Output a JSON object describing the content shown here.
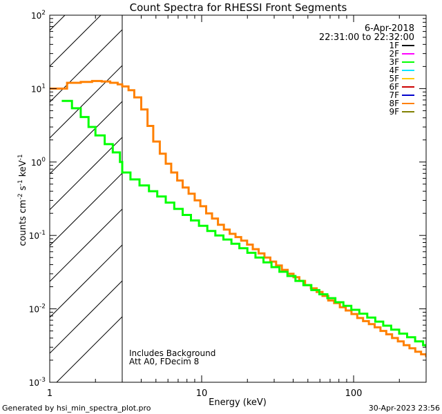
{
  "chart_data": {
    "type": "line",
    "title": "Count Spectra for RHESSI Front Segments",
    "xlabel": "Energy (keV)",
    "ylabel_parts": [
      "counts cm",
      "-2",
      " s",
      "-1",
      " keV",
      "-1"
    ],
    "xscale": "log",
    "yscale": "log",
    "xlim": [
      1,
      300
    ],
    "ylim": [
      0.001,
      100
    ],
    "x_ticks": [
      {
        "value": 1,
        "label": "1"
      },
      {
        "value": 10,
        "label": "10"
      },
      {
        "value": 100,
        "label": "100"
      }
    ],
    "y_ticks": [
      {
        "value": 100,
        "base": "10",
        "exp": "2"
      },
      {
        "value": 10,
        "base": "10",
        "exp": "1"
      },
      {
        "value": 1,
        "base": "10",
        "exp": "0"
      },
      {
        "value": 0.1,
        "base": "10",
        "exp": "-1"
      },
      {
        "value": 0.01,
        "base": "10",
        "exp": "-2"
      },
      {
        "value": 0.001,
        "base": "10",
        "exp": "-3"
      }
    ],
    "date": "6-Apr-2018",
    "time_range": "22:31:00 to 22:32:00",
    "hatched_region_max_keV": 3,
    "annotations": [
      "Includes Background",
      "Att A0, FDecim 8"
    ],
    "legend": [
      {
        "label": "1F",
        "color": "#000000"
      },
      {
        "label": "2F",
        "color": "#ff00ff"
      },
      {
        "label": "3F",
        "color": "#00ff00"
      },
      {
        "label": "4F",
        "color": "#00e5ff"
      },
      {
        "label": "5F",
        "color": "#ffcc00"
      },
      {
        "label": "6F",
        "color": "#cc0000"
      },
      {
        "label": "7F",
        "color": "#0000cc"
      },
      {
        "label": "8F",
        "color": "#ff8000"
      },
      {
        "label": "9F",
        "color": "#808000"
      }
    ],
    "series": [
      {
        "name": "8F",
        "color": "#ff8000",
        "points": [
          [
            1.0,
            10.0
          ],
          [
            1.3,
            12.0
          ],
          [
            1.6,
            12.3
          ],
          [
            1.9,
            12.7
          ],
          [
            2.2,
            12.5
          ],
          [
            2.5,
            12.0
          ],
          [
            2.8,
            11.4
          ],
          [
            3.0,
            10.7
          ],
          [
            3.3,
            9.5
          ],
          [
            3.6,
            7.6
          ],
          [
            4.0,
            5.2
          ],
          [
            4.4,
            3.1
          ],
          [
            4.8,
            1.9
          ],
          [
            5.3,
            1.3
          ],
          [
            5.8,
            0.95
          ],
          [
            6.3,
            0.72
          ],
          [
            6.9,
            0.56
          ],
          [
            7.5,
            0.45
          ],
          [
            8.2,
            0.37
          ],
          [
            9.0,
            0.3
          ],
          [
            9.8,
            0.25
          ],
          [
            10.7,
            0.2
          ],
          [
            11.7,
            0.17
          ],
          [
            12.8,
            0.14
          ],
          [
            14.0,
            0.12
          ],
          [
            15.3,
            0.105
          ],
          [
            16.7,
            0.095
          ],
          [
            18.2,
            0.085
          ],
          [
            19.9,
            0.075
          ],
          [
            21.7,
            0.065
          ],
          [
            23.7,
            0.057
          ],
          [
            25.9,
            0.05
          ],
          [
            28.3,
            0.044
          ],
          [
            30.9,
            0.039
          ],
          [
            33.7,
            0.034
          ],
          [
            36.8,
            0.03
          ],
          [
            40.2,
            0.027
          ],
          [
            43.9,
            0.024
          ],
          [
            47.9,
            0.021
          ],
          [
            52.3,
            0.019
          ],
          [
            57.1,
            0.017
          ],
          [
            62.4,
            0.015
          ],
          [
            68.1,
            0.013
          ],
          [
            74.4,
            0.012
          ],
          [
            81.2,
            0.0105
          ],
          [
            88.7,
            0.0095
          ],
          [
            96.8,
            0.0085
          ],
          [
            105.7,
            0.0075
          ],
          [
            115.4,
            0.0068
          ],
          [
            126.0,
            0.0062
          ],
          [
            137.6,
            0.0056
          ],
          [
            150.2,
            0.005
          ],
          [
            164.0,
            0.0045
          ],
          [
            179.1,
            0.004
          ],
          [
            195.5,
            0.0036
          ],
          [
            213.5,
            0.0032
          ],
          [
            233.1,
            0.0029
          ],
          [
            254.5,
            0.0026
          ],
          [
            277.9,
            0.0024
          ],
          [
            300.0,
            0.0022
          ]
        ]
      },
      {
        "name": "3F",
        "color": "#00ff00",
        "points": [
          [
            1.2,
            6.8
          ],
          [
            1.4,
            5.4
          ],
          [
            1.6,
            4.1
          ],
          [
            1.8,
            3.0
          ],
          [
            2.0,
            2.3
          ],
          [
            2.3,
            1.75
          ],
          [
            2.6,
            1.35
          ],
          [
            2.9,
            1.0
          ],
          [
            3.0,
            0.72
          ],
          [
            3.4,
            0.58
          ],
          [
            3.9,
            0.48
          ],
          [
            4.5,
            0.4
          ],
          [
            5.1,
            0.34
          ],
          [
            5.8,
            0.28
          ],
          [
            6.6,
            0.23
          ],
          [
            7.5,
            0.19
          ],
          [
            8.5,
            0.16
          ],
          [
            9.6,
            0.135
          ],
          [
            10.9,
            0.115
          ],
          [
            12.3,
            0.1
          ],
          [
            13.9,
            0.088
          ],
          [
            15.7,
            0.077
          ],
          [
            17.7,
            0.067
          ],
          [
            20.0,
            0.058
          ],
          [
            22.6,
            0.05
          ],
          [
            25.5,
            0.043
          ],
          [
            28.8,
            0.037
          ],
          [
            32.5,
            0.032
          ],
          [
            36.7,
            0.028
          ],
          [
            41.4,
            0.024
          ],
          [
            46.7,
            0.021
          ],
          [
            52.7,
            0.018
          ],
          [
            59.5,
            0.0158
          ],
          [
            67.2,
            0.014
          ],
          [
            75.8,
            0.0123
          ],
          [
            85.6,
            0.011
          ],
          [
            96.6,
            0.0097
          ],
          [
            109.0,
            0.0086
          ],
          [
            123.0,
            0.0076
          ],
          [
            138.8,
            0.0067
          ],
          [
            156.6,
            0.0059
          ],
          [
            176.7,
            0.0052
          ],
          [
            199.4,
            0.0046
          ],
          [
            225.0,
            0.0041
          ],
          [
            253.9,
            0.0036
          ],
          [
            286.5,
            0.0032
          ],
          [
            300.0,
            0.003
          ]
        ]
      }
    ]
  },
  "footer": {
    "generated_by": "Generated by hsi_min_spectra_plot.pro",
    "timestamp": "30-Apr-2023 23:56"
  }
}
